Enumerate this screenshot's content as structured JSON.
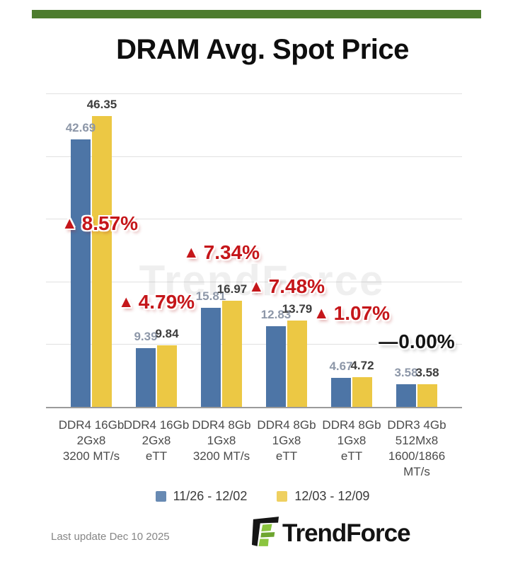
{
  "page": {
    "title": "DRAM Avg. Spot Price",
    "last_update": "Last update Dec 10 2025",
    "brand": "TrendForce",
    "watermark": "TrendForce",
    "accent_green": "#4d7c2e"
  },
  "chart_data": {
    "type": "bar",
    "title": "DRAM Avg. Spot Price",
    "categories": [
      "DDR4 16Gb\n2Gx8\n3200 MT/s",
      "DDR4 16Gb\n2Gx8\neTT",
      "DDR4 8Gb\n1Gx8\n3200 MT/s",
      "DDR4 8Gb\n1Gx8\neTT",
      "DDR4 8Gb\n1Gx8\neTT",
      "DDR3 4Gb\n512Mx8\n1600/1866\nMT/s"
    ],
    "series": [
      {
        "name": "11/26 - 12/02",
        "color": "#4d75a6",
        "label_color": "#8d97a8",
        "values": [
          42.69,
          9.39,
          15.81,
          12.83,
          4.67,
          3.58
        ]
      },
      {
        "name": "12/03 - 12/09",
        "color": "#ecc844",
        "label_color": "#3d3d3d",
        "values": [
          46.35,
          9.84,
          16.97,
          13.79,
          4.72,
          3.58
        ]
      }
    ],
    "annotations": [
      {
        "text": "8.57%",
        "direction": "up",
        "prefix": ""
      },
      {
        "text": "4.79%",
        "direction": "up",
        "prefix": ""
      },
      {
        "text": "7.34%",
        "direction": "up",
        "prefix": ""
      },
      {
        "text": "7.48%",
        "direction": "up",
        "prefix": ""
      },
      {
        "text": "1.07%",
        "direction": "up",
        "prefix": ""
      },
      {
        "text": "0.00%",
        "direction": "flat",
        "prefix": "—"
      }
    ],
    "up_color": "#c5161a",
    "flat_color": "#141414",
    "ylim": [
      0,
      50
    ],
    "grid_interval": 10,
    "grid": true,
    "legend_position": "bottom",
    "legend_entries": [
      "11/26 - 12/02",
      "12/03 - 12/09"
    ]
  }
}
